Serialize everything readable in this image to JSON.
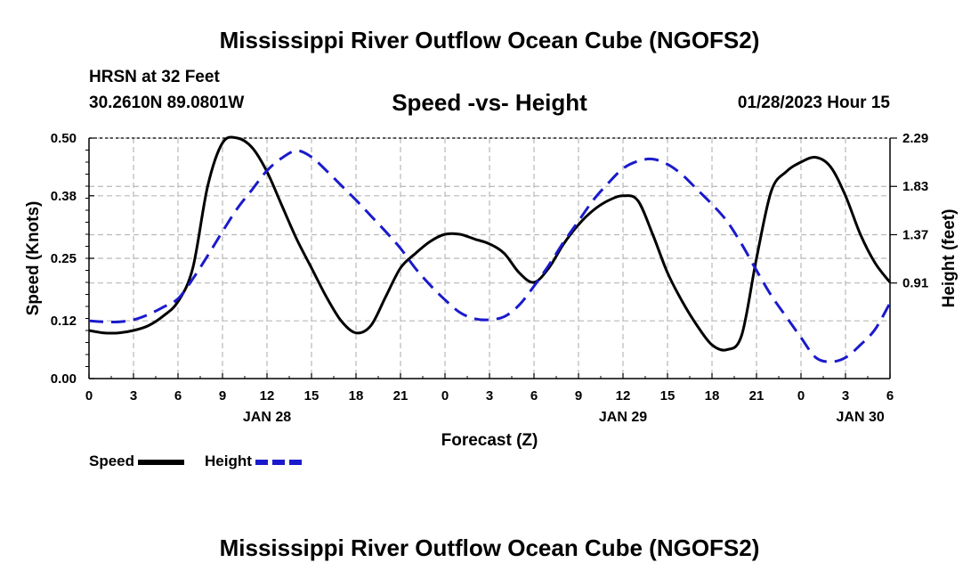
{
  "header": {
    "title": "Mississippi River Outflow Ocean Cube (NGOFS2)",
    "station": "HRSN at 32 Feet",
    "coords": "30.2610N  89.0801W",
    "subtitle": "Speed -vs- Height",
    "datetime": "01/28/2023 Hour 15"
  },
  "footer": {
    "title": "Mississippi River Outflow Ocean Cube (NGOFS2)"
  },
  "legend": {
    "speed_label": "Speed",
    "height_label": "Height",
    "speed_color": "#000000",
    "height_color": "#1a1acc"
  },
  "chart_data": {
    "type": "line",
    "title": "Speed -vs- Height",
    "xlabel": "Forecast (Z)",
    "ylabel": "Speed (Knots)",
    "y2label": "Height (feet)",
    "xlim": [
      0,
      54
    ],
    "ylim": [
      0,
      0.5
    ],
    "y2lim": [
      0.0,
      2.29
    ],
    "x_ticks": [
      0,
      3,
      6,
      9,
      12,
      15,
      18,
      21,
      24,
      27,
      30,
      33,
      36,
      39,
      42,
      45,
      48,
      51,
      54
    ],
    "x_tick_labels": [
      "0",
      "3",
      "6",
      "9",
      "12",
      "15",
      "18",
      "21",
      "0",
      "3",
      "6",
      "9",
      "12",
      "15",
      "18",
      "21",
      "0",
      "3",
      "6"
    ],
    "date_labels": [
      {
        "x": 12,
        "label": "JAN 28"
      },
      {
        "x": 36,
        "label": "JAN 29"
      },
      {
        "x": 52,
        "label": "JAN 30"
      }
    ],
    "y_ticks": [
      0.0,
      0.12,
      0.25,
      0.38,
      0.5
    ],
    "y_tick_labels": [
      "0.00",
      "0.12",
      "0.25",
      "0.38",
      "0.50"
    ],
    "y2_ticks": [
      0.91,
      1.37,
      1.83,
      2.29
    ],
    "y2_tick_labels": [
      "0.91",
      "1.37",
      "1.83",
      "2.29"
    ],
    "grid": true,
    "series": [
      {
        "name": "Speed",
        "axis": "left",
        "style": "solid",
        "x": [
          0,
          1,
          2,
          3,
          4,
          5,
          6,
          7,
          8,
          9,
          10,
          11,
          12,
          13,
          14,
          15,
          16,
          17,
          18,
          19,
          20,
          21,
          22,
          23,
          24,
          25,
          26,
          27,
          28,
          29,
          30,
          31,
          32,
          33,
          34,
          35,
          36,
          37,
          38,
          39,
          40,
          41,
          42,
          43,
          44,
          45,
          46,
          47,
          48,
          49,
          50,
          51,
          52,
          53,
          54
        ],
        "values": [
          0.1,
          0.095,
          0.095,
          0.1,
          0.11,
          0.13,
          0.16,
          0.23,
          0.4,
          0.49,
          0.5,
          0.48,
          0.43,
          0.36,
          0.29,
          0.23,
          0.17,
          0.12,
          0.095,
          0.11,
          0.17,
          0.23,
          0.26,
          0.285,
          0.3,
          0.3,
          0.29,
          0.28,
          0.26,
          0.22,
          0.2,
          0.23,
          0.28,
          0.32,
          0.35,
          0.37,
          0.38,
          0.37,
          0.3,
          0.22,
          0.16,
          0.11,
          0.07,
          0.06,
          0.09,
          0.25,
          0.39,
          0.43,
          0.45,
          0.46,
          0.44,
          0.38,
          0.3,
          0.24,
          0.2
        ]
      },
      {
        "name": "Height",
        "axis": "right",
        "style": "dashed",
        "x": [
          0,
          1,
          2,
          3,
          4,
          5,
          6,
          7,
          8,
          9,
          10,
          11,
          12,
          13,
          14,
          15,
          16,
          17,
          18,
          19,
          20,
          21,
          22,
          23,
          24,
          25,
          26,
          27,
          28,
          29,
          30,
          31,
          32,
          33,
          34,
          35,
          36,
          37,
          38,
          39,
          40,
          41,
          42,
          43,
          44,
          45,
          46,
          47,
          48,
          49,
          50,
          51,
          52,
          53,
          54
        ],
        "values": [
          0.55,
          0.54,
          0.54,
          0.56,
          0.61,
          0.68,
          0.76,
          0.95,
          1.17,
          1.4,
          1.62,
          1.8,
          1.98,
          2.1,
          2.17,
          2.11,
          1.98,
          1.84,
          1.7,
          1.55,
          1.4,
          1.24,
          1.05,
          0.89,
          0.75,
          0.63,
          0.57,
          0.56,
          0.59,
          0.7,
          0.88,
          1.08,
          1.3,
          1.5,
          1.7,
          1.86,
          2.0,
          2.07,
          2.09,
          2.04,
          1.94,
          1.8,
          1.66,
          1.5,
          1.28,
          1.03,
          0.79,
          0.59,
          0.39,
          0.2,
          0.16,
          0.2,
          0.32,
          0.47,
          0.72
        ]
      }
    ]
  }
}
